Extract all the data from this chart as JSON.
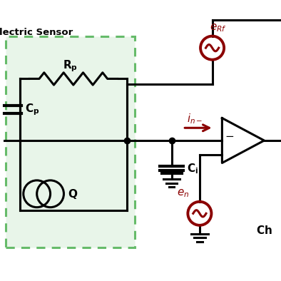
{
  "bg_color": "#ffffff",
  "green_box_color": "#e8f5e9",
  "green_border_color": "#66bb6a",
  "black_color": "#000000",
  "dark_red_color": "#8b0000",
  "line_width": 2.2,
  "sensor_label": "lectric Sensor"
}
